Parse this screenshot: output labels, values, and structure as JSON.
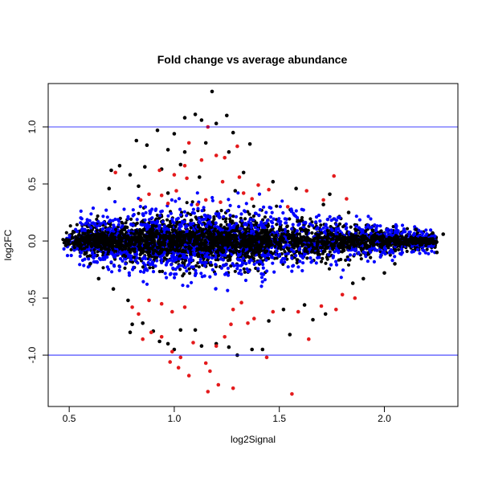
{
  "chart_data": {
    "type": "scatter",
    "title": "Fold change vs average abundance",
    "xlabel": "log2Signal",
    "ylabel": "log2FC",
    "xlim": [
      0.4,
      2.35
    ],
    "ylim": [
      -1.45,
      1.38
    ],
    "xticks": [
      0.5,
      1.0,
      1.5,
      2.0
    ],
    "xtick_labels": [
      "0.5",
      "1.0",
      "1.5",
      "2.0"
    ],
    "yticks": [
      -1.0,
      -0.5,
      0.0,
      0.5,
      1.0
    ],
    "ytick_labels": [
      "-1.0",
      "-0.5",
      "0.0",
      "0.5",
      "1.0"
    ],
    "hlines": [
      1.0,
      -1.0
    ],
    "hline_color": "#0000ff",
    "grid": false,
    "series": [
      {
        "color": "#000000",
        "points": [
          [
            1.18,
            1.31
          ],
          [
            1.1,
            1.11
          ],
          [
            1.25,
            1.1
          ],
          [
            1.05,
            1.08
          ],
          [
            1.13,
            1.06
          ],
          [
            1.2,
            1.03
          ],
          [
            0.92,
            0.97
          ],
          [
            1.0,
            0.94
          ],
          [
            1.28,
            0.95
          ],
          [
            0.82,
            0.88
          ],
          [
            1.15,
            0.86
          ],
          [
            1.36,
            0.85
          ],
          [
            0.87,
            0.84
          ],
          [
            0.97,
            0.8
          ],
          [
            1.05,
            0.78
          ],
          [
            1.26,
            0.78
          ],
          [
            0.74,
            0.66
          ],
          [
            0.86,
            0.65
          ],
          [
            0.94,
            0.63
          ],
          [
            1.03,
            0.67
          ],
          [
            1.33,
            0.6
          ],
          [
            0.7,
            0.62
          ],
          [
            0.79,
            0.58
          ],
          [
            1.12,
            0.56
          ],
          [
            1.47,
            0.52
          ],
          [
            0.69,
            0.46
          ],
          [
            0.83,
            0.48
          ],
          [
            1.58,
            0.46
          ],
          [
            1.71,
            0.32
          ],
          [
            1.83,
            0.25
          ],
          [
            0.97,
            0.42
          ],
          [
            1.29,
            0.44
          ],
          [
            1.74,
            0.41
          ],
          [
            2.15,
            0.1
          ],
          [
            2.23,
            0.07
          ],
          [
            2.28,
            0.06
          ],
          [
            0.6,
            -0.2
          ],
          [
            0.64,
            -0.33
          ],
          [
            0.71,
            -0.42
          ],
          [
            0.78,
            -0.52
          ],
          [
            0.8,
            -0.73
          ],
          [
            0.79,
            -0.8
          ],
          [
            0.85,
            -0.72
          ],
          [
            0.9,
            -0.79
          ],
          [
            0.93,
            -0.88
          ],
          [
            0.97,
            -0.9
          ],
          [
            1.0,
            -0.95
          ],
          [
            1.03,
            -0.78
          ],
          [
            1.1,
            -0.78
          ],
          [
            1.13,
            -0.92
          ],
          [
            1.2,
            -0.9
          ],
          [
            1.26,
            -0.93
          ],
          [
            1.3,
            -1.0
          ],
          [
            1.37,
            -0.95
          ],
          [
            1.42,
            -0.95
          ],
          [
            1.52,
            -0.6
          ],
          [
            1.62,
            -0.56
          ],
          [
            1.66,
            -0.69
          ],
          [
            1.72,
            -0.64
          ],
          [
            1.45,
            -0.7
          ],
          [
            1.85,
            -0.37
          ],
          [
            1.9,
            -0.33
          ],
          [
            2.0,
            -0.28
          ],
          [
            2.05,
            -0.2
          ],
          [
            2.25,
            -0.1
          ],
          [
            1.55,
            -0.82
          ]
        ]
      },
      {
        "color": "#e41a1c",
        "points": [
          [
            1.16,
            1.0
          ],
          [
            1.05,
            0.66
          ],
          [
            1.13,
            0.71
          ],
          [
            1.2,
            0.75
          ],
          [
            1.24,
            0.73
          ],
          [
            1.07,
            0.86
          ],
          [
            1.3,
            0.83
          ],
          [
            0.72,
            0.6
          ],
          [
            0.93,
            0.62
          ],
          [
            1.0,
            0.58
          ],
          [
            1.06,
            0.55
          ],
          [
            1.23,
            0.52
          ],
          [
            1.31,
            0.56
          ],
          [
            1.4,
            0.49
          ],
          [
            1.76,
            0.57
          ],
          [
            1.63,
            0.44
          ],
          [
            1.71,
            0.36
          ],
          [
            1.82,
            0.37
          ],
          [
            1.33,
            0.42
          ],
          [
            1.45,
            0.45
          ],
          [
            0.84,
            0.36
          ],
          [
            0.88,
            0.41
          ],
          [
            0.94,
            0.4
          ],
          [
            1.01,
            0.44
          ],
          [
            1.15,
            0.36
          ],
          [
            1.37,
            0.37
          ],
          [
            1.54,
            0.3
          ],
          [
            0.97,
            0.33
          ],
          [
            1.11,
            0.32
          ],
          [
            1.22,
            0.34
          ],
          [
            0.8,
            -0.58
          ],
          [
            0.83,
            -0.64
          ],
          [
            0.88,
            -0.52
          ],
          [
            0.94,
            -0.55
          ],
          [
            0.99,
            -0.62
          ],
          [
            1.05,
            -0.58
          ],
          [
            0.85,
            -0.86
          ],
          [
            0.89,
            -0.8
          ],
          [
            0.94,
            -0.84
          ],
          [
            0.99,
            -0.97
          ],
          [
            1.03,
            -1.02
          ],
          [
            1.09,
            -0.89
          ],
          [
            1.15,
            -1.07
          ],
          [
            1.17,
            -1.14
          ],
          [
            1.2,
            -0.92
          ],
          [
            1.24,
            -0.84
          ],
          [
            1.28,
            -0.6
          ],
          [
            1.32,
            -0.54
          ],
          [
            1.35,
            -0.72
          ],
          [
            1.44,
            -1.02
          ],
          [
            1.59,
            -0.62
          ],
          [
            1.64,
            -0.86
          ],
          [
            1.7,
            -0.57
          ],
          [
            1.77,
            -0.6
          ],
          [
            0.98,
            -1.06
          ],
          [
            1.02,
            -1.11
          ],
          [
            1.07,
            -1.18
          ],
          [
            1.16,
            -1.32
          ],
          [
            1.21,
            -1.26
          ],
          [
            1.28,
            -1.29
          ],
          [
            1.56,
            -1.34
          ],
          [
            1.47,
            -0.62
          ],
          [
            1.38,
            -0.68
          ],
          [
            1.8,
            -0.47
          ],
          [
            1.86,
            -0.5
          ],
          [
            1.27,
            -0.73
          ]
        ]
      }
    ]
  }
}
